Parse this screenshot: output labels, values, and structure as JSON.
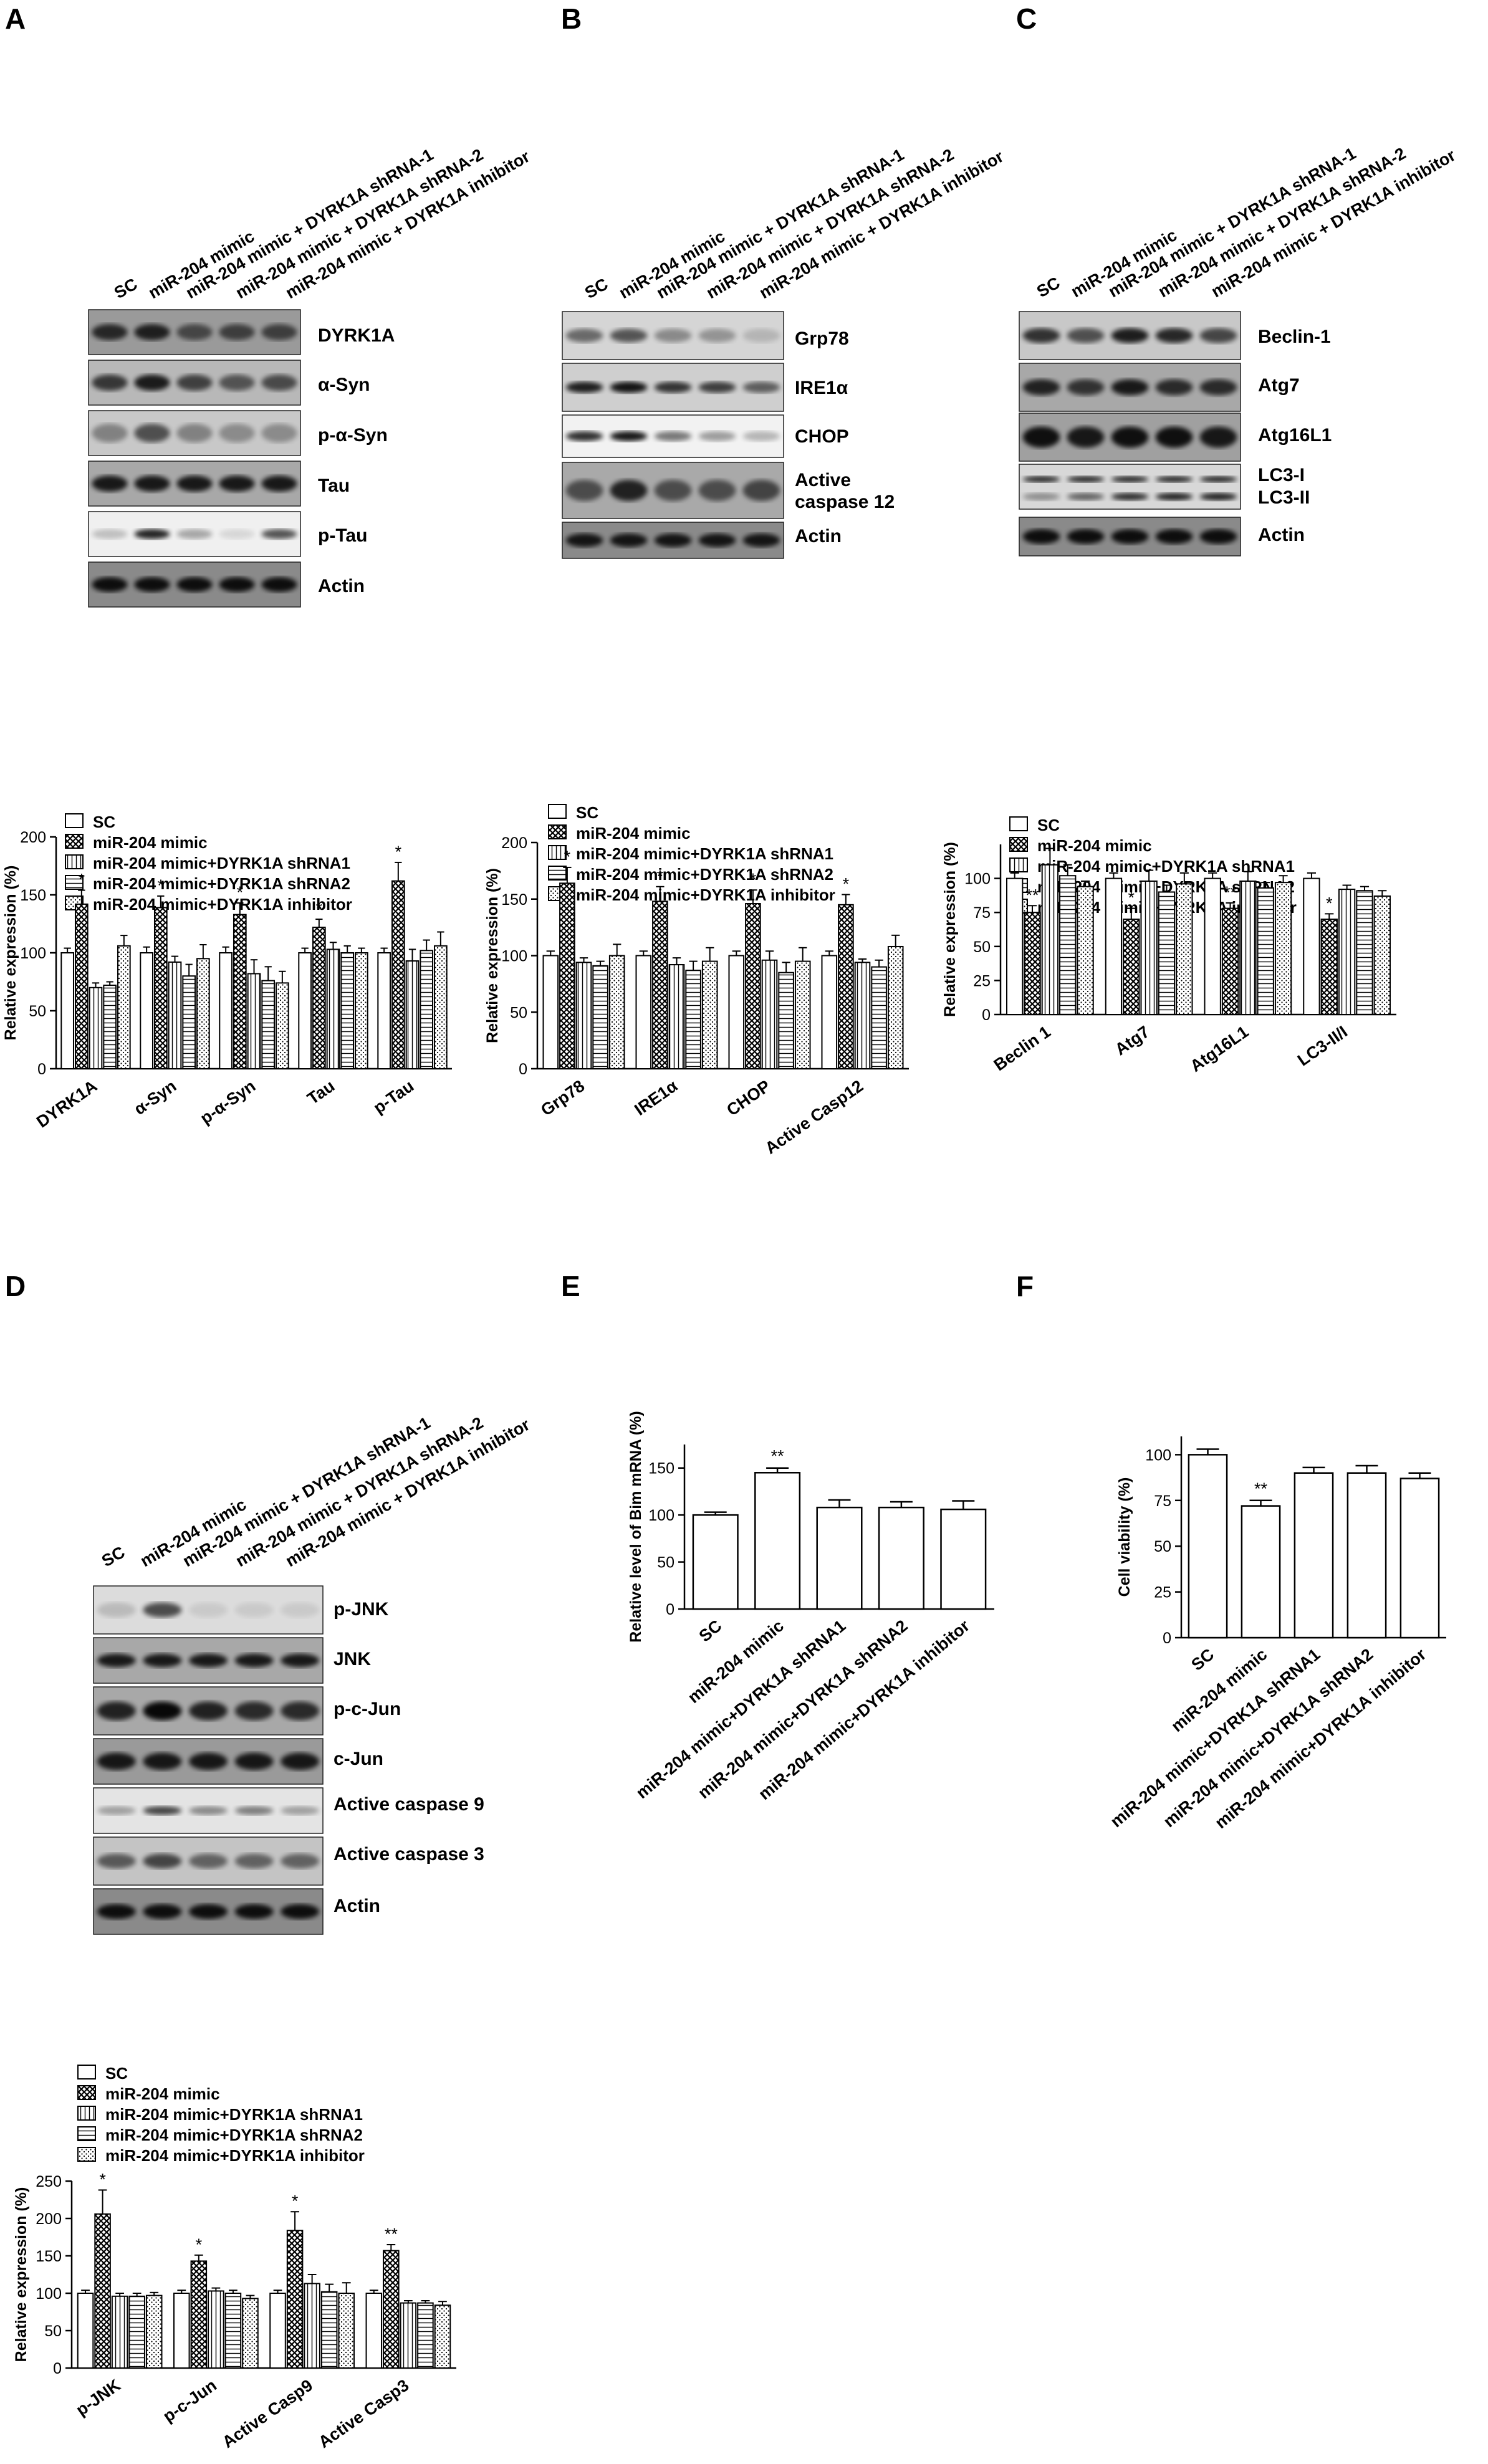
{
  "panels": {
    "A": {
      "label": "A",
      "lanes": [
        "SC",
        "miR-204 mimic",
        "miR-204 mimic + DYRK1A shRNA-1",
        "miR-204 mimic + DYRK1A shRNA-2",
        "miR-204 mimic + DYRK1A inhibitor"
      ],
      "blots": [
        "DYRK1A",
        "α-Syn",
        "p-α-Syn",
        "Tau",
        "p-Tau",
        "Actin"
      ]
    },
    "B": {
      "label": "B",
      "lanes": [
        "SC",
        "miR-204 mimic",
        "miR-204 mimic + DYRK1A shRNA-1",
        "miR-204 mimic + DYRK1A shRNA-2",
        "miR-204 mimic + DYRK1A inhibitor"
      ],
      "blots": [
        "Grp78",
        "IRE1α",
        "CHOP",
        "Active caspase 12",
        "Actin"
      ]
    },
    "C": {
      "label": "C",
      "lanes": [
        "SC",
        "miR-204 mimic",
        "miR-204 mimic + DYRK1A shRNA-1",
        "miR-204 mimic + DYRK1A shRNA-2",
        "miR-204 mimic + DYRK1A inhibitor"
      ],
      "blots": [
        "Beclin-1",
        "Atg7",
        "Atg16L1",
        "LC3-I",
        "LC3-II",
        "Actin"
      ]
    },
    "D": {
      "label": "D",
      "lanes": [
        "SC",
        "miR-204 mimic",
        "miR-204 mimic + DYRK1A shRNA-1",
        "miR-204 mimic + DYRK1A shRNA-2",
        "miR-204 mimic + DYRK1A inhibitor"
      ],
      "blots": [
        "p-JNK",
        "JNK",
        "p-c-Jun",
        "c-Jun",
        "Active caspase 9",
        "Active caspase 3",
        "Actin"
      ]
    },
    "E": {
      "label": "E"
    },
    "F": {
      "label": "F"
    }
  },
  "legend": [
    "SC",
    "miR-204 mimic",
    "miR-204 mimic+DYRK1A shRNA1",
    "miR-204 mimic+DYRK1A shRNA2",
    "miR-204 mimic+DYRK1A inhibitor"
  ],
  "chart_data": [
    {
      "id": "A",
      "type": "bar",
      "ylabel": "Relative expression (%)",
      "ylim": [
        0,
        200
      ],
      "yticks": [
        0,
        50,
        100,
        150,
        200
      ],
      "categories": [
        "DYRK1A",
        "α-Syn",
        "p-α-Syn",
        "Tau",
        "p-Tau"
      ],
      "series": [
        {
          "name": "SC",
          "values": [
            100,
            100,
            100,
            100,
            100
          ],
          "errors": [
            4,
            5,
            5,
            4,
            4
          ]
        },
        {
          "name": "miR-204 mimic",
          "values": [
            142,
            139,
            133,
            122,
            162
          ],
          "errors": [
            12,
            10,
            10,
            7,
            16
          ]
        },
        {
          "name": "miR-204 mimic+DYRK1A shRNA1",
          "values": [
            70,
            92,
            82,
            103,
            93
          ],
          "errors": [
            4,
            5,
            12,
            6,
            10
          ]
        },
        {
          "name": "miR-204 mimic+DYRK1A shRNA2",
          "values": [
            72,
            80,
            76,
            100,
            102
          ],
          "errors": [
            3,
            10,
            12,
            6,
            9
          ]
        },
        {
          "name": "miR-204 mimic+DYRK1A inhibitor",
          "values": [
            106,
            95,
            74,
            100,
            106
          ],
          "errors": [
            9,
            12,
            10,
            4,
            12
          ]
        }
      ],
      "significance": [
        "*",
        "*",
        "*",
        "*",
        "*"
      ]
    },
    {
      "id": "B",
      "type": "bar",
      "ylabel": "Relative expression (%)",
      "ylim": [
        0,
        200
      ],
      "yticks": [
        0,
        50,
        100,
        150,
        200
      ],
      "categories": [
        "Grp78",
        "IRE1α",
        "CHOP",
        "Active Casp12"
      ],
      "series": [
        {
          "name": "SC",
          "values": [
            100,
            100,
            100,
            100
          ],
          "errors": [
            4,
            4,
            4,
            4
          ]
        },
        {
          "name": "miR-204 mimic",
          "values": [
            164,
            148,
            146,
            145
          ],
          "errors": [
            14,
            13,
            12,
            9
          ]
        },
        {
          "name": "miR-204 mimic+DYRK1A shRNA1",
          "values": [
            94,
            92,
            96,
            94
          ],
          "errors": [
            4,
            6,
            8,
            3
          ]
        },
        {
          "name": "miR-204 mimic+DYRK1A shRNA2",
          "values": [
            91,
            87,
            85,
            90
          ],
          "errors": [
            4,
            8,
            9,
            6
          ]
        },
        {
          "name": "miR-204 mimic+DYRK1A inhibitor",
          "values": [
            100,
            95,
            95,
            108
          ],
          "errors": [
            10,
            12,
            12,
            10
          ]
        }
      ],
      "significance": [
        "*",
        "*",
        "*",
        "*"
      ]
    },
    {
      "id": "C",
      "type": "bar",
      "ylabel": "Relative expression (%)",
      "ylim": [
        0,
        125
      ],
      "yticks": [
        0,
        25,
        50,
        75,
        100
      ],
      "categories": [
        "Beclin 1",
        "Atg7",
        "Atg16L1",
        "LC3-II/I"
      ],
      "series": [
        {
          "name": "SC",
          "values": [
            100,
            100,
            100,
            100
          ],
          "errors": [
            4,
            4,
            4,
            4
          ]
        },
        {
          "name": "miR-204 mimic",
          "values": [
            75,
            70,
            78,
            70
          ],
          "errors": [
            5,
            8,
            4,
            4
          ]
        },
        {
          "name": "miR-204 mimic+DYRK1A shRNA1",
          "values": [
            110,
            98,
            98,
            92
          ],
          "errors": [
            12,
            8,
            7,
            3
          ]
        },
        {
          "name": "miR-204 mimic+DYRK1A shRNA2",
          "values": [
            102,
            90,
            93,
            91
          ],
          "errors": [
            8,
            5,
            4,
            3
          ]
        },
        {
          "name": "miR-204 mimic+DYRK1A inhibitor",
          "values": [
            94,
            96,
            97,
            87
          ],
          "errors": [
            4,
            8,
            5,
            4
          ]
        }
      ],
      "significance": [
        "**",
        "*",
        "**",
        "*"
      ]
    },
    {
      "id": "D",
      "type": "bar",
      "ylabel": "Relative expression (%)",
      "ylim": [
        0,
        250
      ],
      "yticks": [
        0,
        50,
        100,
        150,
        200,
        250
      ],
      "categories": [
        "p-JNK",
        "p-c-Jun",
        "Active Casp9",
        "Active Casp3"
      ],
      "series": [
        {
          "name": "SC",
          "values": [
            100,
            100,
            100,
            100
          ],
          "errors": [
            4,
            4,
            4,
            4
          ]
        },
        {
          "name": "miR-204 mimic",
          "values": [
            206,
            143,
            184,
            157
          ],
          "errors": [
            32,
            8,
            25,
            8
          ]
        },
        {
          "name": "miR-204 mimic+DYRK1A shRNA1",
          "values": [
            96,
            103,
            113,
            87
          ],
          "errors": [
            4,
            4,
            12,
            3
          ]
        },
        {
          "name": "miR-204 mimic+DYRK1A shRNA2",
          "values": [
            96,
            100,
            102,
            87
          ],
          "errors": [
            4,
            4,
            10,
            3
          ]
        },
        {
          "name": "miR-204 mimic+DYRK1A inhibitor",
          "values": [
            97,
            93,
            100,
            84
          ],
          "errors": [
            4,
            4,
            14,
            5
          ]
        }
      ],
      "significance": [
        "*",
        "*",
        "*",
        "**"
      ]
    },
    {
      "id": "E",
      "type": "bar",
      "ylabel": "Relative level of Bim mRNA (%)",
      "ylim": [
        0,
        175
      ],
      "yticks": [
        0,
        50,
        100,
        150
      ],
      "categories": [
        "SC",
        "miR-204 mimic",
        "miR-204 mimic+DYRK1A shRNA1",
        "miR-204 mimic+DYRK1A shRNA2",
        "miR-204 mimic+DYRK1A inhibitor"
      ],
      "values": [
        100,
        145,
        108,
        108,
        106
      ],
      "errors": [
        3,
        5,
        8,
        6,
        9
      ],
      "significance": [
        "",
        "**",
        "",
        "",
        ""
      ]
    },
    {
      "id": "F",
      "type": "bar",
      "ylabel": "Cell viability (%)",
      "ylim": [
        0,
        110
      ],
      "yticks": [
        0,
        25,
        50,
        75,
        100
      ],
      "categories": [
        "SC",
        "miR-204 mimic",
        "miR-204 mimic+DYRK1A shRNA1",
        "miR-204 mimic+DYRK1A shRNA2",
        "miR-204 mimic+DYRK1A inhibitor"
      ],
      "values": [
        100,
        72,
        90,
        90,
        87
      ],
      "errors": [
        3,
        3,
        3,
        4,
        3
      ],
      "significance": [
        "",
        "**",
        "",
        "",
        ""
      ]
    }
  ]
}
